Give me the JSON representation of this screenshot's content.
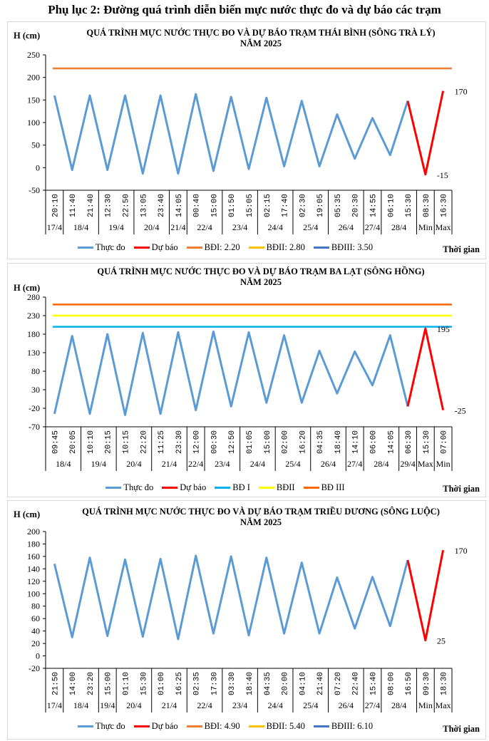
{
  "document_title": "Phụ lục 2: Đường quá trình diễn biến mực nước thực đo và dự báo các trạm",
  "chart_data": [
    {
      "type": "line",
      "title": "QUÁ TRÌNH MỰC NƯỚC THỰC ĐO VÀ DỰ BÁO TRẠM THÁI BÌNH (SÔNG TRÀ LÝ)",
      "subtitle": "NĂM 2025",
      "ylabel": "H (cm)",
      "xlabel": "Thời gian",
      "ylim": [
        -50,
        250
      ],
      "yticks": [
        250,
        200,
        150,
        100,
        50,
        0,
        -50
      ],
      "x": [
        "20:10",
        "11:40",
        "21:40",
        "12:30",
        "22:50",
        "13:05",
        "23:40",
        "14:05",
        "00:40",
        "15:00",
        "01:50",
        "15:05",
        "02:15",
        "17:40",
        "02:30",
        "19:05",
        "05:35",
        "20:30",
        "14:55",
        "06:10",
        "15:30",
        "08:30",
        "16:30"
      ],
      "groups": [
        {
          "label": "17/4",
          "span": 1
        },
        {
          "label": "18/4",
          "span": 2
        },
        {
          "label": "19/4",
          "span": 2
        },
        {
          "label": "20/4",
          "span": 2
        },
        {
          "label": "21/4",
          "span": 1
        },
        {
          "label": "22/4",
          "span": 2
        },
        {
          "label": "23/4",
          "span": 2
        },
        {
          "label": "24/4",
          "span": 2
        },
        {
          "label": "25/4",
          "span": 2
        },
        {
          "label": "26/4",
          "span": 2
        },
        {
          "label": "27/4",
          "span": 1
        },
        {
          "label": "28/4",
          "span": 2
        },
        {
          "label": "Min",
          "span": 1
        },
        {
          "label": "Max",
          "span": 1
        }
      ],
      "series": [
        {
          "name": "Thực đo",
          "color": "#5b9bd5",
          "values": [
            160,
            -5,
            160,
            -5,
            160,
            -13,
            160,
            -13,
            163,
            -7,
            157,
            -3,
            155,
            3,
            148,
            3,
            118,
            20,
            110,
            28,
            148,
            null,
            null
          ]
        },
        {
          "name": "Dự báo",
          "color": "#ff0000",
          "values": [
            null,
            null,
            null,
            null,
            null,
            null,
            null,
            null,
            null,
            null,
            null,
            null,
            null,
            null,
            null,
            null,
            null,
            null,
            null,
            null,
            148,
            -15,
            170
          ]
        }
      ],
      "thresholds": [
        {
          "name": "BĐI: 2.20",
          "color": "#ed7d31",
          "value": 220
        },
        {
          "name": "BĐII: 2.80",
          "color": "#ffc000",
          "value": 280
        },
        {
          "name": "BĐIII: 3.50",
          "color": "#4472c4",
          "value": 350
        }
      ],
      "annotations": [
        {
          "text": "170",
          "index": 22,
          "value": 170
        },
        {
          "text": "-15",
          "index": 21,
          "value": -15
        }
      ],
      "grid": false,
      "legend": "bottom"
    },
    {
      "type": "line",
      "title": "QUÁ TRÌNH MỰC NƯỚC THỰC ĐO VÀ DỰ BÁO TRẠM BA LẠT (SÔNG HỒNG)",
      "subtitle": "NĂM 2025",
      "ylabel": "H (cm)",
      "xlabel": "Thời gian",
      "ylim": [
        -70,
        280
      ],
      "yticks": [
        280,
        230,
        180,
        130,
        80,
        30,
        -20,
        -70
      ],
      "x": [
        "09:45",
        "20:05",
        "10:10",
        "20:15",
        "10:15",
        "22:20",
        "11:25",
        "23:30",
        "12:00",
        "00:30",
        "12:50",
        "01:05",
        "15:00",
        "02:00",
        "16:20",
        "04:35",
        "18:40",
        "14:10",
        "06:00",
        "14:05",
        "06:30",
        "15:30",
        "07:00"
      ],
      "groups": [
        {
          "label": "18/4",
          "span": 2
        },
        {
          "label": "19/4",
          "span": 2
        },
        {
          "label": "20/4",
          "span": 2
        },
        {
          "label": "21/4",
          "span": 2
        },
        {
          "label": "22/4",
          "span": 1
        },
        {
          "label": "23/4",
          "span": 2
        },
        {
          "label": "24/4",
          "span": 2
        },
        {
          "label": "25/4",
          "span": 2
        },
        {
          "label": "26/4",
          "span": 2
        },
        {
          "label": "27/4",
          "span": 1
        },
        {
          "label": "28/4",
          "span": 2
        },
        {
          "label": "29/4",
          "span": 1
        },
        {
          "label": "Max",
          "span": 1
        },
        {
          "label": "Min",
          "span": 1
        }
      ],
      "series": [
        {
          "name": "Thực đo",
          "color": "#5b9bd5",
          "values": [
            -35,
            175,
            -35,
            180,
            -38,
            183,
            -35,
            185,
            -25,
            187,
            -15,
            185,
            -5,
            177,
            -5,
            135,
            20,
            133,
            42,
            177,
            -15,
            null,
            null
          ]
        },
        {
          "name": "Dự báo",
          "color": "#ff0000",
          "values": [
            null,
            null,
            null,
            null,
            null,
            null,
            null,
            null,
            null,
            null,
            null,
            null,
            null,
            null,
            null,
            null,
            null,
            null,
            null,
            null,
            -15,
            195,
            -25
          ]
        }
      ],
      "thresholds": [
        {
          "name": "BĐ I",
          "color": "#00b0f0",
          "value": 200
        },
        {
          "name": "BĐII",
          "color": "#ffff00",
          "value": 230
        },
        {
          "name": "BĐ III",
          "color": "#ff6600",
          "value": 260
        }
      ],
      "annotations": [
        {
          "text": "195",
          "index": 21,
          "value": 195
        },
        {
          "text": "-25",
          "index": 22,
          "value": -25
        }
      ],
      "grid": false,
      "legend": "bottom"
    },
    {
      "type": "line",
      "title": "QUÁ TRÌNH MỰC NƯỚC THỰC ĐO VÀ DỰ BÁO TRẠM TRIỀU DƯƠNG  (SÔNG LUỘC)",
      "subtitle": "NĂM 2025",
      "ylabel": "H (cm)",
      "xlabel": "Thời gian",
      "ylim": [
        -20,
        200
      ],
      "yticks": [
        200,
        180,
        160,
        140,
        120,
        100,
        80,
        60,
        40,
        20,
        0,
        -20
      ],
      "x": [
        "21:50",
        "14:00",
        "23:20",
        "15:00",
        "01:10",
        "15:30",
        "01:00",
        "16:25",
        "02:35",
        "17:30",
        "03:30",
        "18:40",
        "04:35",
        "20:00",
        "04:10",
        "21:40",
        "07:20",
        "22:40",
        "15:40",
        "08:00",
        "16:50",
        "09:30",
        "18:30"
      ],
      "groups": [
        {
          "label": "17/4",
          "span": 1
        },
        {
          "label": "18/4",
          "span": 2
        },
        {
          "label": "19/4",
          "span": 1
        },
        {
          "label": "20/4",
          "span": 2
        },
        {
          "label": "21/4",
          "span": 2
        },
        {
          "label": "22/4",
          "span": 2
        },
        {
          "label": "23/4",
          "span": 2
        },
        {
          "label": "24/4",
          "span": 2
        },
        {
          "label": "25/4",
          "span": 2
        },
        {
          "label": "26/4",
          "span": 2
        },
        {
          "label": "27/4",
          "span": 1
        },
        {
          "label": "28/4",
          "span": 2
        },
        {
          "label": "Min",
          "span": 1
        },
        {
          "label": "Max",
          "span": 1
        }
      ],
      "series": [
        {
          "name": "Thực đo",
          "color": "#5b9bd5",
          "values": [
            148,
            30,
            158,
            32,
            155,
            31,
            156,
            27,
            161,
            36,
            160,
            33,
            158,
            36,
            150,
            36,
            126,
            44,
            127,
            48,
            154,
            null,
            null
          ]
        },
        {
          "name": "Dự báo",
          "color": "#ff0000",
          "values": [
            null,
            null,
            null,
            null,
            null,
            null,
            null,
            null,
            null,
            null,
            null,
            null,
            null,
            null,
            null,
            null,
            null,
            null,
            null,
            null,
            154,
            25,
            170
          ]
        }
      ],
      "thresholds": [
        {
          "name": "BĐI: 4.90",
          "color": "#ed7d31",
          "value": 490
        },
        {
          "name": "BĐII: 5.40",
          "color": "#ffc000",
          "value": 540
        },
        {
          "name": "BĐIII: 6.10",
          "color": "#4472c4",
          "value": 610
        }
      ],
      "annotations": [
        {
          "text": "170",
          "index": 22,
          "value": 170
        },
        {
          "text": "25",
          "index": 21,
          "value": 25
        }
      ],
      "grid": false,
      "legend": "bottom"
    }
  ]
}
